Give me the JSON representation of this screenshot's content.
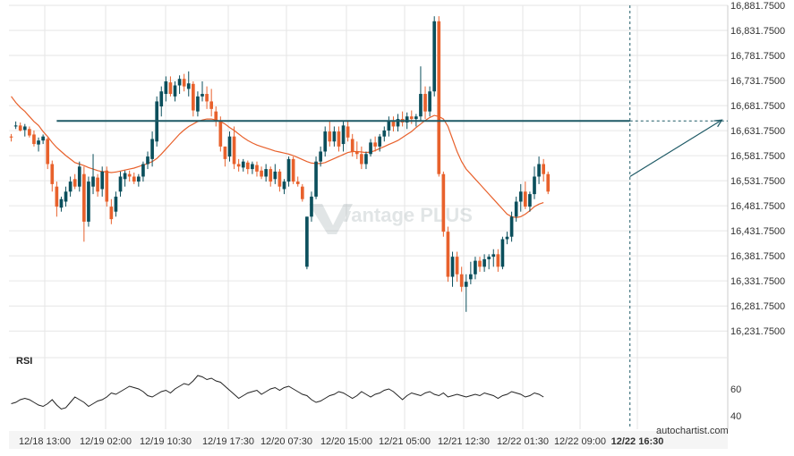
{
  "chart_data": {
    "type": "candlestick",
    "title": "",
    "watermark": "vantage PLUS",
    "footer": "autochartist.com",
    "colors": {
      "up": "#0b4f5c",
      "down": "#e8612c",
      "ma": "#e8612c",
      "level_line": "#1e5a66",
      "grid": "#e6e6e6",
      "axis_text": "#333333",
      "rsi_line": "#222222"
    },
    "y_axis": {
      "ylim": [
        16200,
        16881.75
      ],
      "ticks": [
        "16,881.7500",
        "16,831.7500",
        "16,781.7500",
        "16,731.7500",
        "16,681.7500",
        "16,631.7500",
        "16,581.7500",
        "16,531.7500",
        "16,481.7500",
        "16,431.7500",
        "16,381.7500",
        "16,331.7500",
        "16,281.7500",
        "16,231.7500"
      ]
    },
    "x_axis": {
      "ticks": [
        "12/18 13:00",
        "12/19 02:00",
        "12/19 10:30",
        "12/19 17:30",
        "12/20 07:30",
        "12/20 15:00",
        "12/21 05:00",
        "12/21 12:30",
        "12/22 01:30",
        "12/22 09:00",
        "12/22 16:30"
      ],
      "highlight": "12/22 16:30"
    },
    "resistance_level": 16651,
    "forecast": {
      "from": [
        136,
        16540
      ],
      "to": [
        157,
        16653
      ]
    },
    "cursor_index": 136,
    "candles": [
      [
        16620,
        16625,
        16610,
        16618
      ],
      [
        16640,
        16650,
        16635,
        16642
      ],
      [
        16642,
        16648,
        16630,
        16632
      ],
      [
        16633,
        16645,
        16620,
        16640
      ],
      [
        16635,
        16640,
        16618,
        16622
      ],
      [
        16624,
        16632,
        16600,
        16605
      ],
      [
        16604,
        16618,
        16590,
        16612
      ],
      [
        16612,
        16624,
        16605,
        16620
      ],
      [
        16615,
        16618,
        16555,
        16565
      ],
      [
        16565,
        16572,
        16510,
        16525
      ],
      [
        16520,
        16530,
        16460,
        16480
      ],
      [
        16478,
        16500,
        16470,
        16495
      ],
      [
        16490,
        16520,
        16480,
        16510
      ],
      [
        16510,
        16540,
        16500,
        16530
      ],
      [
        16535,
        16545,
        16515,
        16520
      ],
      [
        16520,
        16570,
        16510,
        16560
      ],
      [
        16545,
        16560,
        16410,
        16450
      ],
      [
        16450,
        16540,
        16440,
        16530
      ],
      [
        16520,
        16585,
        16505,
        16540
      ],
      [
        16538,
        16545,
        16500,
        16510
      ],
      [
        16515,
        16560,
        16500,
        16550
      ],
      [
        16552,
        16560,
        16480,
        16490
      ],
      [
        16480,
        16495,
        16445,
        16455
      ],
      [
        16470,
        16510,
        16460,
        16500
      ],
      [
        16510,
        16550,
        16500,
        16540
      ],
      [
        16535,
        16552,
        16520,
        16547
      ],
      [
        16545,
        16552,
        16530,
        16540
      ],
      [
        16540,
        16548,
        16525,
        16530
      ],
      [
        16530,
        16545,
        16520,
        16540
      ],
      [
        16540,
        16570,
        16530,
        16565
      ],
      [
        16565,
        16590,
        16555,
        16580
      ],
      [
        16575,
        16630,
        16560,
        16615
      ],
      [
        16610,
        16700,
        16600,
        16690
      ],
      [
        16680,
        16720,
        16660,
        16710
      ],
      [
        16705,
        16740,
        16690,
        16730
      ],
      [
        16728,
        16740,
        16700,
        16705
      ],
      [
        16700,
        16730,
        16690,
        16722
      ],
      [
        16722,
        16742,
        16705,
        16735
      ],
      [
        16735,
        16745,
        16710,
        16720
      ],
      [
        16715,
        16750,
        16700,
        16726
      ],
      [
        16725,
        16730,
        16660,
        16672
      ],
      [
        16670,
        16710,
        16660,
        16700
      ],
      [
        16700,
        16730,
        16690,
        16705
      ],
      [
        16705,
        16720,
        16675,
        16690
      ],
      [
        16690,
        16715,
        16660,
        16675
      ],
      [
        16670,
        16680,
        16640,
        16650
      ],
      [
        16650,
        16660,
        16590,
        16600
      ],
      [
        16600,
        16600,
        16560,
        16575
      ],
      [
        16580,
        16630,
        16570,
        16620
      ],
      [
        16620,
        16640,
        16555,
        16565
      ],
      [
        16565,
        16575,
        16550,
        16560
      ],
      [
        16558,
        16575,
        16550,
        16570
      ],
      [
        16568,
        16572,
        16545,
        16555
      ],
      [
        16555,
        16570,
        16545,
        16565
      ],
      [
        16563,
        16570,
        16540,
        16550
      ],
      [
        16552,
        16560,
        16535,
        16540
      ],
      [
        16540,
        16565,
        16530,
        16555
      ],
      [
        16555,
        16560,
        16520,
        16530
      ],
      [
        16535,
        16565,
        16525,
        16550
      ],
      [
        16550,
        16555,
        16510,
        16520
      ],
      [
        16515,
        16535,
        16505,
        16530
      ],
      [
        16530,
        16580,
        16520,
        16575
      ],
      [
        16575,
        16580,
        16525,
        16530
      ],
      [
        16530,
        16540,
        16520,
        16525
      ],
      [
        16520,
        16525,
        16490,
        16495
      ],
      [
        16360,
        16460,
        16355,
        16460
      ],
      [
        16460,
        16510,
        16450,
        16500
      ],
      [
        16500,
        16580,
        16495,
        16570
      ],
      [
        16570,
        16600,
        16560,
        16590
      ],
      [
        16590,
        16640,
        16580,
        16630
      ],
      [
        16630,
        16650,
        16600,
        16610
      ],
      [
        16610,
        16640,
        16600,
        16630
      ],
      [
        16630,
        16640,
        16590,
        16600
      ],
      [
        16605,
        16650,
        16590,
        16642
      ],
      [
        16640,
        16650,
        16610,
        16618
      ],
      [
        16615,
        16625,
        16580,
        16590
      ],
      [
        16590,
        16610,
        16575,
        16585
      ],
      [
        16585,
        16600,
        16555,
        16565
      ],
      [
        16565,
        16590,
        16555,
        16585
      ],
      [
        16585,
        16615,
        16580,
        16608
      ],
      [
        16608,
        16620,
        16590,
        16600
      ],
      [
        16600,
        16625,
        16590,
        16620
      ],
      [
        16620,
        16640,
        16610,
        16632
      ],
      [
        16632,
        16660,
        16620,
        16650
      ],
      [
        16650,
        16660,
        16630,
        16640
      ],
      [
        16640,
        16665,
        16630,
        16655
      ],
      [
        16655,
        16670,
        16640,
        16648
      ],
      [
        16648,
        16668,
        16635,
        16660
      ],
      [
        16660,
        16672,
        16645,
        16655
      ],
      [
        16655,
        16665,
        16640,
        16660
      ],
      [
        16660,
        16760,
        16650,
        16705
      ],
      [
        16705,
        16720,
        16655,
        16670
      ],
      [
        16670,
        16720,
        16660,
        16710
      ],
      [
        16710,
        16860,
        16700,
        16850
      ],
      [
        16850,
        16860,
        16540,
        16545
      ],
      [
        16545,
        16550,
        16420,
        16430
      ],
      [
        16430,
        16440,
        16330,
        16340
      ],
      [
        16340,
        16390,
        16320,
        16380
      ],
      [
        16380,
        16390,
        16330,
        16345
      ],
      [
        16345,
        16360,
        16310,
        16320
      ],
      [
        16320,
        16345,
        16270,
        16330
      ],
      [
        16335,
        16370,
        16325,
        16345
      ],
      [
        16345,
        16380,
        16335,
        16372
      ],
      [
        16372,
        16380,
        16350,
        16360
      ],
      [
        16360,
        16385,
        16350,
        16375
      ],
      [
        16375,
        16385,
        16355,
        16380
      ],
      [
        16380,
        16395,
        16360,
        16385
      ],
      [
        16385,
        16395,
        16350,
        16360
      ],
      [
        16360,
        16420,
        16355,
        16415
      ],
      [
        16415,
        16430,
        16405,
        16420
      ],
      [
        16420,
        16470,
        16410,
        16460
      ],
      [
        16460,
        16500,
        16450,
        16490
      ],
      [
        16490,
        16525,
        16470,
        16510
      ],
      [
        16510,
        16530,
        16475,
        16480
      ],
      [
        16480,
        16510,
        16470,
        16505
      ],
      [
        16505,
        16560,
        16495,
        16540
      ],
      [
        16540,
        16580,
        16525,
        16565
      ],
      [
        16565,
        16575,
        16530,
        16545
      ],
      [
        16545,
        16550,
        16505,
        16510
      ]
    ],
    "ma_line": [
      16700,
      16688,
      16678,
      16670,
      16660,
      16650,
      16642,
      16630,
      16620,
      16608,
      16598,
      16590,
      16582,
      16575,
      16568,
      16565,
      16562,
      16558,
      16555,
      16552,
      16550,
      16549,
      16548,
      16549,
      16551,
      16553,
      16555,
      16557,
      16560,
      16563,
      16566,
      16570,
      16576,
      16585,
      16595,
      16605,
      16615,
      16625,
      16633,
      16640,
      16645,
      16650,
      16653,
      16655,
      16655,
      16653,
      16650,
      16645,
      16638,
      16632,
      16625,
      16618,
      16612,
      16607,
      16603,
      16600,
      16597,
      16594,
      16591,
      16589,
      16587,
      16585,
      16582,
      16578,
      16574,
      16570,
      16567,
      16566,
      16566,
      16568,
      16572,
      16576,
      16580,
      16584,
      16588,
      16590,
      16590,
      16589,
      16588,
      16589,
      16592,
      16596,
      16600,
      16604,
      16608,
      16612,
      16618,
      16624,
      16630,
      16638,
      16645,
      16652,
      16658,
      16662,
      16660,
      16655,
      16640,
      16615,
      16590,
      16570,
      16555,
      16545,
      16535,
      16525,
      16515,
      16505,
      16495,
      16485,
      16475,
      16465,
      16460,
      16458,
      16460,
      16465,
      16472,
      16480,
      16485,
      16488
    ],
    "rsi": {
      "label": "RSI",
      "ticks": [
        "60",
        "40"
      ],
      "ylim": [
        30,
        80
      ],
      "values": [
        49,
        50,
        52,
        53,
        52,
        50,
        48,
        47,
        49,
        52,
        48,
        45,
        46,
        50,
        54,
        52,
        50,
        47,
        49,
        51,
        52,
        54,
        57,
        56,
        58,
        60,
        62,
        61,
        60,
        58,
        55,
        54,
        56,
        58,
        59,
        57,
        60,
        62,
        64,
        63,
        66,
        70,
        69,
        67,
        68,
        66,
        65,
        62,
        59,
        56,
        53,
        55,
        57,
        58,
        59,
        56,
        58,
        60,
        61,
        59,
        61,
        62,
        60,
        58,
        56,
        55,
        52,
        50,
        51,
        53,
        55,
        56,
        58,
        57,
        55,
        53,
        55,
        58,
        56,
        54,
        56,
        57,
        59,
        60,
        58,
        55,
        52,
        55,
        57,
        56,
        55,
        57,
        58,
        56,
        55,
        57,
        54,
        55,
        56,
        55,
        54,
        55,
        56,
        55,
        57,
        56,
        55,
        53,
        55,
        56,
        58,
        57,
        56,
        54,
        55,
        57,
        56,
        54
      ]
    }
  }
}
